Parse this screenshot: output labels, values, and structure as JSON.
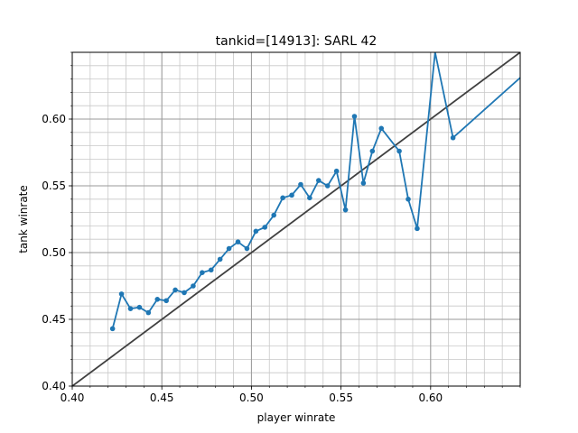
{
  "chart_data": {
    "type": "line",
    "title": "tankid=[14913]: SARL 42",
    "xlabel": "player winrate",
    "ylabel": "tank winrate",
    "xlim": [
      0.4,
      0.65
    ],
    "ylim": [
      0.4,
      0.65
    ],
    "grid": true,
    "minor_grid": true,
    "x_ticks": [
      0.4,
      0.45,
      0.5,
      0.55,
      0.6
    ],
    "y_ticks": [
      0.4,
      0.45,
      0.5,
      0.55,
      0.6
    ],
    "x_tick_labels": [
      "0.40",
      "0.45",
      "0.50",
      "0.55",
      "0.60"
    ],
    "y_tick_labels": [
      "0.40",
      "0.45",
      "0.50",
      "0.55",
      "0.60"
    ],
    "reference_line": {
      "type": "y=x",
      "color": "#404040"
    },
    "series": [
      {
        "color": "#1f77b4",
        "x": [
          0.4225,
          0.4275,
          0.4325,
          0.4375,
          0.4425,
          0.4475,
          0.4525,
          0.4575,
          0.4625,
          0.4675,
          0.4725,
          0.4775,
          0.4825,
          0.4875,
          0.4925,
          0.4975,
          0.5025,
          0.5075,
          0.5125,
          0.5175,
          0.5225,
          0.5275,
          0.5325,
          0.5375,
          0.5425,
          0.5475,
          0.5525,
          0.5575,
          0.5625,
          0.5675,
          0.5725,
          0.5825,
          0.5875,
          0.5925,
          0.6025,
          0.6125,
          0.65
        ],
        "y": [
          0.443,
          0.469,
          0.458,
          0.459,
          0.455,
          0.465,
          0.464,
          0.472,
          0.47,
          0.475,
          0.485,
          0.487,
          0.495,
          0.503,
          0.508,
          0.503,
          0.516,
          0.519,
          0.528,
          0.541,
          0.543,
          0.551,
          0.541,
          0.554,
          0.55,
          0.561,
          0.532,
          0.602,
          0.552,
          0.576,
          0.593,
          0.576,
          0.54,
          0.518,
          0.65,
          0.586,
          0.631
        ],
        "markers": [
          true,
          true,
          true,
          true,
          true,
          true,
          true,
          true,
          true,
          true,
          true,
          true,
          true,
          true,
          true,
          true,
          true,
          true,
          true,
          true,
          true,
          true,
          true,
          true,
          true,
          true,
          true,
          true,
          true,
          true,
          true,
          true,
          true,
          true,
          false,
          true,
          false
        ]
      }
    ]
  }
}
